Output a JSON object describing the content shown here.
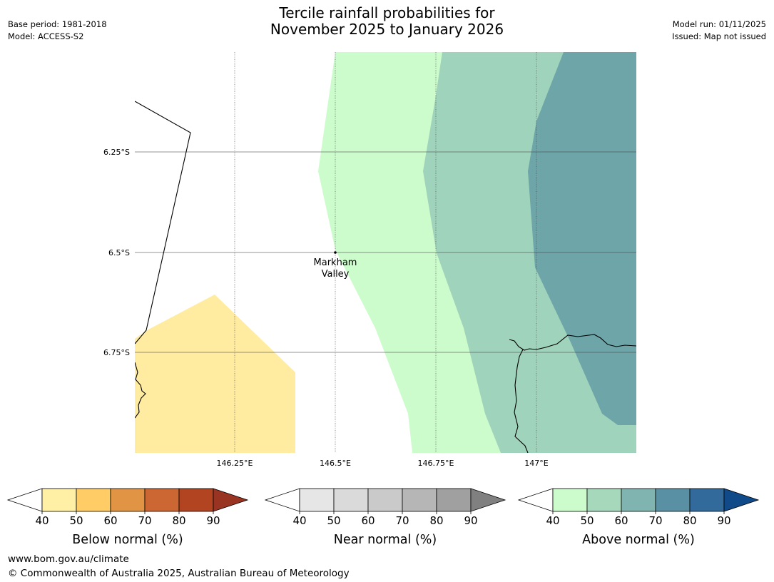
{
  "header": {
    "title_line1": "Tercile rainfall probabilities for",
    "title_line2": "November 2025 to January 2026",
    "base_period": "Base period: 1981-2018",
    "model": "Model: ACCESS-S2",
    "model_run": "Model run: 01/11/2025",
    "issued": "Issued: Map not issued"
  },
  "map": {
    "lat_ticks": [
      "6.25°S",
      "6.5°S",
      "6.75°S"
    ],
    "lon_ticks": [
      "146.25°E",
      "146.5°E",
      "146.75°E",
      "147°E"
    ],
    "place_label_line1": "Markham",
    "place_label_line2": "Valley",
    "fill_colors": {
      "below_40_50": "#ffeca0",
      "above_40_50": "#ccfccc",
      "above_50_60": "#a0d3bb",
      "above_60_70": "#6da5a8"
    }
  },
  "colorbars": [
    {
      "label": "Below normal (%)",
      "ticks": [
        "40",
        "50",
        "60",
        "70",
        "80",
        "90"
      ],
      "colors": [
        "#fff0a6",
        "#ffcc66",
        "#e09444",
        "#cc6633",
        "#b24422",
        "#993322"
      ]
    },
    {
      "label": "Near normal (%)",
      "ticks": [
        "40",
        "50",
        "60",
        "70",
        "80",
        "90"
      ],
      "colors": [
        "#e6e6e6",
        "#dadada",
        "#cacaca",
        "#b6b6b6",
        "#a0a0a0",
        "#808080"
      ]
    },
    {
      "label": "Above normal (%)",
      "ticks": [
        "40",
        "50",
        "60",
        "70",
        "80",
        "90"
      ],
      "colors": [
        "#ccfccc",
        "#a6d8bc",
        "#80b4b0",
        "#5a90a4",
        "#336a9c",
        "#114a88"
      ]
    }
  ],
  "footer": {
    "url": "www.bom.gov.au/climate",
    "copyright": "© Commonwealth of Australia 2025, Australian Bureau of Meteorology"
  }
}
